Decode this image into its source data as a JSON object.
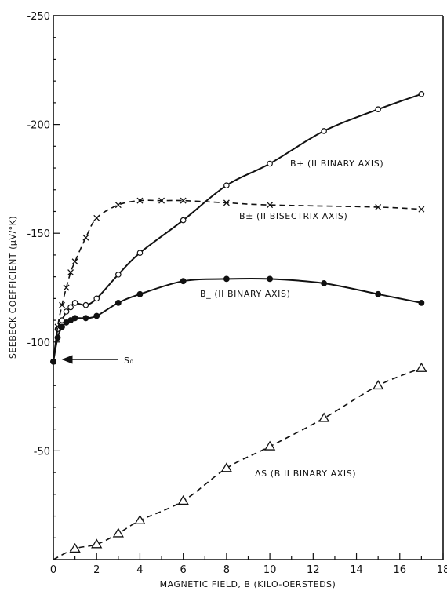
{
  "chart_data": {
    "type": "line",
    "xlabel": "MAGNETIC FIELD, B (KILO-OERSTEDS)",
    "ylabel": "SEEBECK COEFFICIENT (µV/°K)",
    "xlim": [
      0,
      18
    ],
    "ylim": [
      0,
      -250
    ],
    "x_ticks": [
      0,
      2,
      4,
      6,
      8,
      10,
      12,
      14,
      16,
      18
    ],
    "y_ticks": [
      -50,
      -100,
      -150,
      -200,
      -250
    ],
    "grid": false,
    "series": [
      {
        "name": "B+ (II BINARY AXIS)",
        "style": "solid",
        "marker": "open-circle",
        "x": [
          0,
          0.2,
          0.4,
          0.6,
          0.8,
          1.0,
          1.5,
          2.0,
          3.0,
          4.0,
          6.0,
          8.0,
          10.0,
          12.5,
          15.0,
          17.0
        ],
        "y": [
          -91,
          -106,
          -110,
          -114,
          -116,
          -118,
          -117,
          -120,
          -131,
          -141,
          -156,
          -172,
          -182,
          -197,
          -207,
          -214
        ]
      },
      {
        "name": "B± (II BISECTRIX AXIS)",
        "style": "dashed",
        "marker": "cross",
        "x": [
          0,
          0.2,
          0.4,
          0.6,
          0.8,
          1.0,
          1.5,
          2.0,
          3.0,
          4.0,
          5.0,
          6.0,
          8.0,
          10.0,
          15.0,
          17.0
        ],
        "y": [
          -91,
          -107,
          -117,
          -125,
          -132,
          -137,
          -148,
          -157,
          -163,
          -165,
          -165,
          -165,
          -164,
          -163,
          -162,
          -161
        ]
      },
      {
        "name": "B_ (II BINARY AXIS)",
        "style": "solid",
        "marker": "filled-circle",
        "x": [
          0,
          0.2,
          0.4,
          0.6,
          0.8,
          1.0,
          1.5,
          2.0,
          3.0,
          4.0,
          6.0,
          8.0,
          10.0,
          12.5,
          15.0,
          17.0
        ],
        "y": [
          -91,
          -102,
          -107,
          -109,
          -110,
          -111,
          -111,
          -112,
          -118,
          -122,
          -128,
          -129,
          -129,
          -127,
          -122,
          -118
        ]
      },
      {
        "name": "ΔS (B II BINARY AXIS)",
        "style": "dashed",
        "marker": "open-triangle",
        "x": [
          0,
          1.0,
          2.0,
          3.0,
          4.0,
          6.0,
          8.0,
          10.0,
          12.5,
          15.0,
          17.0
        ],
        "y": [
          0,
          -5,
          -7,
          -12,
          -18,
          -27,
          -42,
          -52,
          -65,
          -80,
          -88
        ]
      }
    ],
    "annotations": [
      {
        "text": "S₀",
        "target_x": 0,
        "target_y": -91
      }
    ]
  }
}
